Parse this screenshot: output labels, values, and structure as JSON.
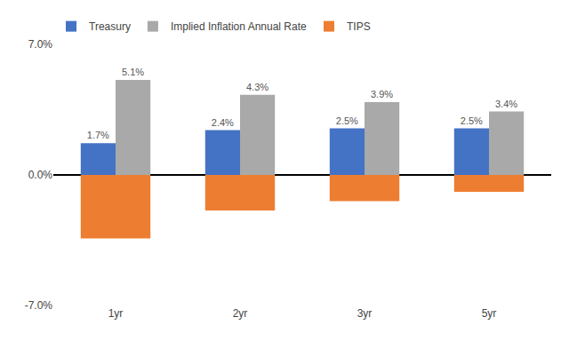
{
  "chart_data": {
    "type": "bar",
    "categories": [
      "1yr",
      "2yr",
      "3yr",
      "5yr"
    ],
    "series": [
      {
        "name": "Treasury",
        "color": "#4472C4",
        "values": [
          1.7,
          2.4,
          2.5,
          2.5
        ],
        "value_labels": [
          "1.7%",
          "2.4%",
          "2.5%",
          "2.5%"
        ],
        "data_labels": true
      },
      {
        "name": "Implied Inflation Annual Rate",
        "color": "#A9A9A9",
        "values": [
          5.1,
          4.3,
          3.9,
          3.4
        ],
        "value_labels": [
          "5.1%",
          "4.3%",
          "3.9%",
          "3.4%"
        ],
        "data_labels": true
      },
      {
        "name": "TIPS",
        "color": "#ED7D31",
        "values": [
          -3.4,
          -1.9,
          -1.4,
          -0.9
        ],
        "data_labels": false
      }
    ],
    "ylim": [
      -7.0,
      7.0
    ],
    "yticks": [
      {
        "value": -7.0,
        "label": "-7.0%"
      },
      {
        "value": 0.0,
        "label": "0.0%"
      },
      {
        "value": 7.0,
        "label": "7.0%"
      }
    ],
    "grid": false,
    "legend": "upper left"
  }
}
